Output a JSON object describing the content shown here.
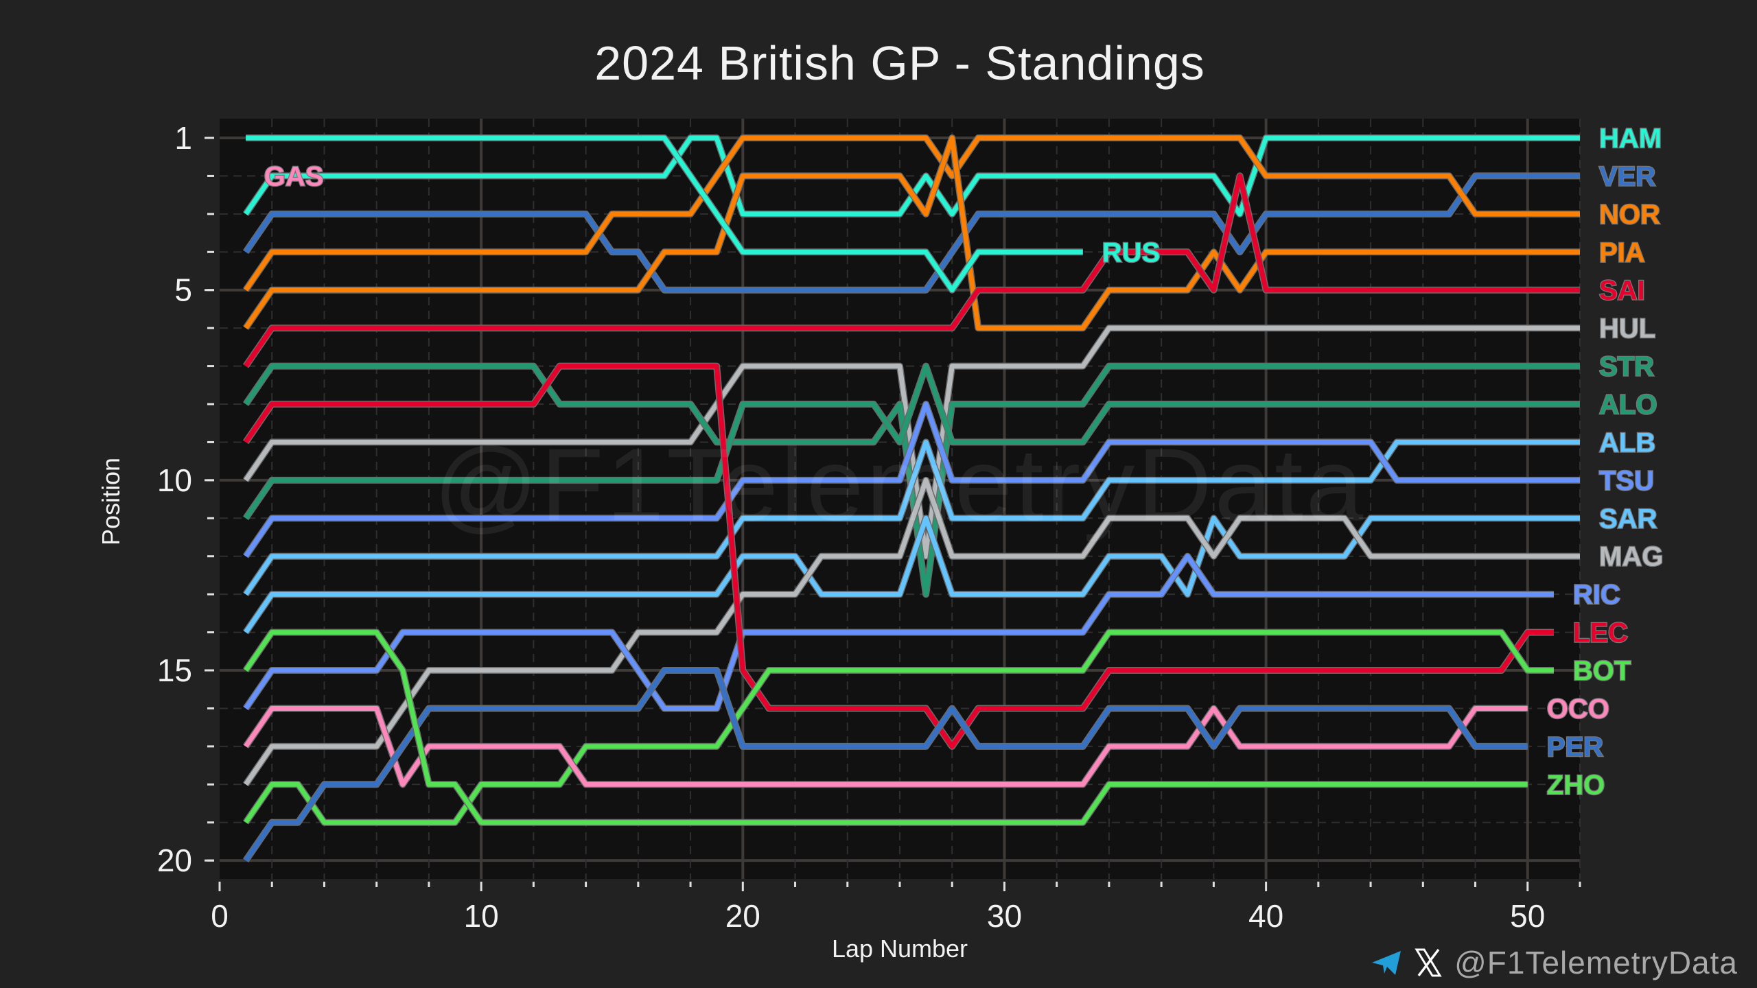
{
  "chart_data": {
    "type": "line",
    "title": "2024 British GP - Standings",
    "xlabel": "Lap Number",
    "ylabel": "Position",
    "xlim": [
      0,
      52
    ],
    "ylim": [
      20.6,
      0.5
    ],
    "xticks": [
      0,
      10,
      20,
      30,
      40,
      50
    ],
    "yticks": [
      1,
      5,
      10,
      15,
      20
    ],
    "grid": true,
    "series": [
      {
        "name": "HAM",
        "color": "#27F4D2",
        "points": [
          [
            1,
            3
          ],
          [
            2,
            2
          ],
          [
            17,
            2
          ],
          [
            18,
            1
          ],
          [
            19,
            1
          ],
          [
            20,
            3
          ],
          [
            26,
            3
          ],
          [
            27,
            2
          ],
          [
            28,
            3
          ],
          [
            29,
            2
          ],
          [
            38,
            2
          ],
          [
            39,
            3
          ],
          [
            40,
            1
          ],
          [
            52,
            1
          ]
        ]
      },
      {
        "name": "VER",
        "color": "#3671C6",
        "points": [
          [
            1,
            4
          ],
          [
            2,
            3
          ],
          [
            14,
            3
          ],
          [
            15,
            4
          ],
          [
            16,
            4
          ],
          [
            17,
            5
          ],
          [
            27,
            5
          ],
          [
            29,
            3
          ],
          [
            38,
            3
          ],
          [
            39,
            4
          ],
          [
            40,
            3
          ],
          [
            47,
            3
          ],
          [
            48,
            2
          ],
          [
            52,
            2
          ]
        ]
      },
      {
        "name": "NOR",
        "color": "#FF8000",
        "points": [
          [
            1,
            5
          ],
          [
            2,
            4
          ],
          [
            14,
            4
          ],
          [
            15,
            3
          ],
          [
            18,
            3
          ],
          [
            20,
            1
          ],
          [
            27,
            1
          ],
          [
            28,
            2
          ],
          [
            29,
            1
          ],
          [
            39,
            1
          ],
          [
            40,
            2
          ],
          [
            47,
            2
          ],
          [
            48,
            3
          ],
          [
            52,
            3
          ]
        ]
      },
      {
        "name": "PIA",
        "color": "#FF8000",
        "points": [
          [
            1,
            6
          ],
          [
            2,
            5
          ],
          [
            16,
            5
          ],
          [
            17,
            4
          ],
          [
            19,
            4
          ],
          [
            20,
            2
          ],
          [
            26,
            2
          ],
          [
            27,
            3
          ],
          [
            28,
            1
          ],
          [
            29,
            6
          ],
          [
            33,
            6
          ],
          [
            34,
            5
          ],
          [
            37,
            5
          ],
          [
            38,
            4
          ],
          [
            39,
            5
          ],
          [
            40,
            4
          ],
          [
            52,
            4
          ]
        ]
      },
      {
        "name": "SAI",
        "color": "#E8002D",
        "points": [
          [
            1,
            7
          ],
          [
            2,
            6
          ],
          [
            28,
            6
          ],
          [
            29,
            5
          ],
          [
            33,
            5
          ],
          [
            34,
            4
          ],
          [
            37,
            4
          ],
          [
            38,
            5
          ],
          [
            39,
            2
          ],
          [
            40,
            5
          ],
          [
            52,
            5
          ]
        ]
      },
      {
        "name": "HUL",
        "color": "#B6BABD",
        "points": [
          [
            1,
            10
          ],
          [
            2,
            9
          ],
          [
            18,
            9
          ],
          [
            20,
            7
          ],
          [
            26,
            7
          ],
          [
            27,
            12
          ],
          [
            28,
            7
          ],
          [
            33,
            7
          ],
          [
            34,
            6
          ],
          [
            52,
            6
          ]
        ]
      },
      {
        "name": "STR",
        "color": "#229971",
        "points": [
          [
            1,
            8
          ],
          [
            2,
            7
          ],
          [
            12,
            7
          ],
          [
            13,
            8
          ],
          [
            18,
            8
          ],
          [
            19,
            9
          ],
          [
            25,
            9
          ],
          [
            26,
            8
          ],
          [
            27,
            13
          ],
          [
            28,
            8
          ],
          [
            33,
            8
          ],
          [
            34,
            7
          ],
          [
            52,
            7
          ]
        ]
      },
      {
        "name": "ALO",
        "color": "#229971",
        "points": [
          [
            1,
            11
          ],
          [
            2,
            10
          ],
          [
            19,
            10
          ],
          [
            20,
            8
          ],
          [
            25,
            8
          ],
          [
            26,
            9
          ],
          [
            27,
            7
          ],
          [
            28,
            9
          ],
          [
            33,
            9
          ],
          [
            34,
            8
          ],
          [
            52,
            8
          ]
        ]
      },
      {
        "name": "ALB",
        "color": "#64C4FF",
        "points": [
          [
            1,
            13
          ],
          [
            2,
            12
          ],
          [
            19,
            12
          ],
          [
            20,
            11
          ],
          [
            26,
            11
          ],
          [
            27,
            9
          ],
          [
            28,
            11
          ],
          [
            33,
            11
          ],
          [
            34,
            10
          ],
          [
            44,
            10
          ],
          [
            45,
            9
          ],
          [
            52,
            9
          ]
        ]
      },
      {
        "name": "TSU",
        "color": "#6692FF",
        "points": [
          [
            1,
            12
          ],
          [
            2,
            11
          ],
          [
            19,
            11
          ],
          [
            20,
            10
          ],
          [
            26,
            10
          ],
          [
            27,
            8
          ],
          [
            28,
            10
          ],
          [
            33,
            10
          ],
          [
            34,
            9
          ],
          [
            44,
            9
          ],
          [
            45,
            10
          ],
          [
            52,
            10
          ]
        ]
      },
      {
        "name": "SAR",
        "color": "#64C4FF",
        "points": [
          [
            1,
            14
          ],
          [
            2,
            13
          ],
          [
            19,
            13
          ],
          [
            20,
            12
          ],
          [
            22,
            12
          ],
          [
            23,
            13
          ],
          [
            26,
            13
          ],
          [
            27,
            11
          ],
          [
            28,
            13
          ],
          [
            33,
            13
          ],
          [
            34,
            12
          ],
          [
            36,
            12
          ],
          [
            37,
            13
          ],
          [
            38,
            11
          ],
          [
            39,
            12
          ],
          [
            43,
            12
          ],
          [
            44,
            11
          ],
          [
            52,
            11
          ]
        ]
      },
      {
        "name": "MAG",
        "color": "#B6BABD",
        "points": [
          [
            1,
            18
          ],
          [
            2,
            17
          ],
          [
            6,
            17
          ],
          [
            8,
            15
          ],
          [
            15,
            15
          ],
          [
            16,
            14
          ],
          [
            19,
            14
          ],
          [
            20,
            13
          ],
          [
            22,
            13
          ],
          [
            23,
            12
          ],
          [
            26,
            12
          ],
          [
            27,
            10
          ],
          [
            28,
            12
          ],
          [
            33,
            12
          ],
          [
            34,
            11
          ],
          [
            37,
            11
          ],
          [
            38,
            12
          ],
          [
            39,
            11
          ],
          [
            43,
            11
          ],
          [
            44,
            12
          ],
          [
            52,
            12
          ]
        ]
      },
      {
        "name": "RIC",
        "color": "#6692FF",
        "points": [
          [
            1,
            16
          ],
          [
            2,
            15
          ],
          [
            6,
            15
          ],
          [
            7,
            14
          ],
          [
            15,
            14
          ],
          [
            17,
            16
          ],
          [
            19,
            16
          ],
          [
            20,
            14
          ],
          [
            33,
            14
          ],
          [
            34,
            13
          ],
          [
            36,
            13
          ],
          [
            37,
            12
          ],
          [
            38,
            13
          ],
          [
            51,
            13
          ]
        ]
      },
      {
        "name": "LEC",
        "color": "#E8002D",
        "points": [
          [
            1,
            9
          ],
          [
            2,
            8
          ],
          [
            12,
            8
          ],
          [
            13,
            7
          ],
          [
            19,
            7
          ],
          [
            20,
            15
          ],
          [
            21,
            16
          ],
          [
            27,
            16
          ],
          [
            28,
            17
          ],
          [
            29,
            16
          ],
          [
            33,
            16
          ],
          [
            34,
            15
          ],
          [
            49,
            15
          ],
          [
            50,
            14
          ],
          [
            51,
            14
          ]
        ]
      },
      {
        "name": "BOT",
        "color": "#52E252",
        "points": [
          [
            1,
            19
          ],
          [
            2,
            18
          ],
          [
            3,
            18
          ],
          [
            4,
            19
          ],
          [
            9,
            19
          ],
          [
            10,
            18
          ],
          [
            13,
            18
          ],
          [
            14,
            17
          ],
          [
            19,
            17
          ],
          [
            21,
            15
          ],
          [
            33,
            15
          ],
          [
            34,
            14
          ],
          [
            49,
            14
          ],
          [
            50,
            15
          ],
          [
            51,
            15
          ]
        ]
      },
      {
        "name": "OCO",
        "color": "#FF87BC",
        "points": [
          [
            1,
            17
          ],
          [
            2,
            16
          ],
          [
            6,
            16
          ],
          [
            7,
            18
          ],
          [
            8,
            17
          ],
          [
            13,
            17
          ],
          [
            14,
            18
          ],
          [
            33,
            18
          ],
          [
            34,
            17
          ],
          [
            37,
            17
          ],
          [
            38,
            16
          ],
          [
            39,
            17
          ],
          [
            47,
            17
          ],
          [
            48,
            16
          ],
          [
            50,
            16
          ]
        ]
      },
      {
        "name": "PER",
        "color": "#3671C6",
        "points": [
          [
            1,
            20
          ],
          [
            2,
            19
          ],
          [
            3,
            19
          ],
          [
            4,
            18
          ],
          [
            6,
            18
          ],
          [
            8,
            16
          ],
          [
            16,
            16
          ],
          [
            17,
            15
          ],
          [
            19,
            15
          ],
          [
            20,
            17
          ],
          [
            27,
            17
          ],
          [
            28,
            16
          ],
          [
            29,
            17
          ],
          [
            33,
            17
          ],
          [
            34,
            16
          ],
          [
            37,
            16
          ],
          [
            38,
            17
          ],
          [
            39,
            16
          ],
          [
            47,
            16
          ],
          [
            48,
            17
          ],
          [
            50,
            17
          ]
        ]
      },
      {
        "name": "ZHO",
        "color": "#52E252",
        "points": [
          [
            1,
            15
          ],
          [
            2,
            14
          ],
          [
            6,
            14
          ],
          [
            7,
            15
          ],
          [
            8,
            18
          ],
          [
            9,
            18
          ],
          [
            10,
            19
          ],
          [
            33,
            19
          ],
          [
            34,
            18
          ],
          [
            50,
            18
          ]
        ]
      },
      {
        "name": "RUS",
        "color": "#27F4D2",
        "points": [
          [
            1,
            1
          ],
          [
            17,
            1
          ],
          [
            20,
            4
          ],
          [
            27,
            4
          ],
          [
            28,
            5
          ],
          [
            29,
            4
          ],
          [
            33,
            4
          ]
        ]
      },
      {
        "name": "GAS",
        "color": "#FF87BC",
        "points": [],
        "label_at": [
          1.7,
          2
        ]
      }
    ]
  },
  "watermark": "@F1TelemetryData",
  "footer": {
    "handle": "@F1TelemetryData",
    "icons": [
      "telegram-icon",
      "x-icon"
    ],
    "telegram_color": "#229ED9"
  }
}
